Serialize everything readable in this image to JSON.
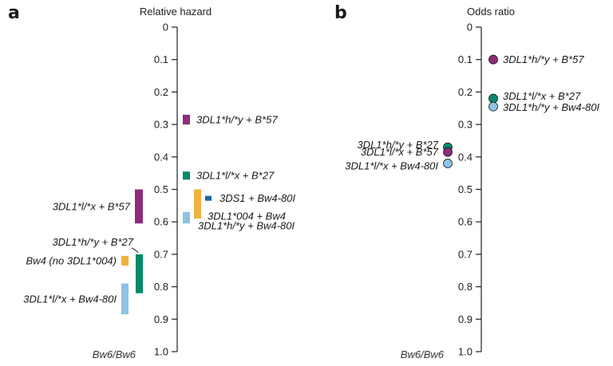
{
  "colors": {
    "purple": "#8e2c7a",
    "teal": "#008a6a",
    "orange": "#f2b13e",
    "light_blue": "#8cc4e6",
    "dark_blue": "#1b64a8"
  },
  "chart_data": [
    {
      "panel": "a",
      "type": "bar",
      "title": "Relative hazard",
      "ylim": [
        0,
        1.0
      ],
      "inverted": true,
      "ticks": [
        "0",
        "0.1",
        "0.2",
        "0.3",
        "0.4",
        "0.5",
        "0.6",
        "0.7",
        "0.8",
        "0.9",
        "1.0"
      ],
      "reference_label": "Bw6/Bw6",
      "ranges": [
        {
          "label": "3DL1*h/*y + B*57",
          "low": 0.27,
          "high": 0.3,
          "color": "purple",
          "side": "right"
        },
        {
          "label": "3DL1*l/*x + B*27",
          "low": 0.445,
          "high": 0.47,
          "color": "teal",
          "side": "right"
        },
        {
          "label": "3DS1 + Bw4-80I",
          "low": 0.52,
          "high": 0.535,
          "color": "dark_blue",
          "side": "right"
        },
        {
          "label": "3DL1*004 + Bw4",
          "low": 0.5,
          "high": 0.59,
          "color": "orange",
          "side": "right"
        },
        {
          "label": "3DL1*h/*y + Bw4-80I",
          "low": 0.57,
          "high": 0.605,
          "color": "light_blue",
          "side": "right"
        },
        {
          "label": "3DL1*l/*x + B*57",
          "low": 0.5,
          "high": 0.605,
          "color": "purple",
          "side": "left"
        },
        {
          "label": "3DL1*h/*y + B*27",
          "low": 0.7,
          "high": 0.82,
          "color": "teal",
          "side": "left"
        },
        {
          "label": "Bw4 (no 3DL1*004)",
          "low": 0.705,
          "high": 0.735,
          "color": "orange",
          "side": "left"
        },
        {
          "label": "3DL1*l/*x + Bw4-80I",
          "low": 0.79,
          "high": 0.885,
          "color": "light_blue",
          "side": "left"
        }
      ]
    },
    {
      "panel": "b",
      "type": "scatter",
      "title": "Odds ratio",
      "ylim": [
        0,
        1.0
      ],
      "inverted": true,
      "ticks": [
        "0",
        "0.1",
        "0.2",
        "0.3",
        "0.4",
        "0.5",
        "0.6",
        "0.7",
        "0.8",
        "0.9",
        "1.0"
      ],
      "reference_label": "Bw6/Bw6",
      "points": [
        {
          "label": "3DL1*h/*y + B*57",
          "value": 0.1,
          "color": "purple",
          "side": "right"
        },
        {
          "label": "3DL1*l/*x + B*27",
          "value": 0.22,
          "color": "teal",
          "side": "right"
        },
        {
          "label": "3DL1*h/*y + Bw4-80I",
          "value": 0.245,
          "color": "light_blue",
          "side": "right"
        },
        {
          "label": "3DL1*h/*y + B*27",
          "value": 0.37,
          "color": "teal",
          "side": "left"
        },
        {
          "label": "3DL1*l/*x + B*57",
          "value": 0.385,
          "color": "purple",
          "side": "left"
        },
        {
          "label": "3DL1*l/*x + Bw4-80I",
          "value": 0.42,
          "color": "light_blue",
          "side": "left"
        }
      ]
    }
  ]
}
